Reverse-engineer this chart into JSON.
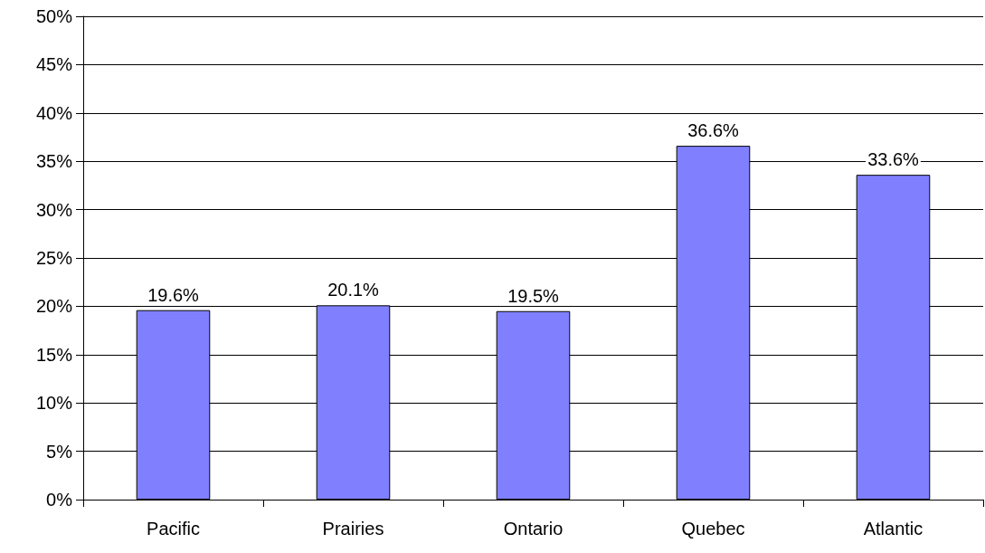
{
  "chart_data": {
    "type": "bar",
    "categories": [
      "Pacific",
      "Prairies",
      "Ontario",
      "Quebec",
      "Atlantic"
    ],
    "values": [
      19.6,
      20.1,
      19.5,
      36.6,
      33.6
    ],
    "value_labels": [
      "19.6%",
      "20.1%",
      "19.5%",
      "36.6%",
      "33.6%"
    ],
    "color": "#8080ff",
    "ylim": [
      0,
      50
    ],
    "yticks": [
      {
        "value": 0,
        "label": "0%"
      },
      {
        "value": 5,
        "label": "5%"
      },
      {
        "value": 10,
        "label": "10%"
      },
      {
        "value": 15,
        "label": "15%"
      },
      {
        "value": 20,
        "label": "20%"
      },
      {
        "value": 25,
        "label": "25%"
      },
      {
        "value": 30,
        "label": "30%"
      },
      {
        "value": 35,
        "label": "35%"
      },
      {
        "value": 40,
        "label": "40%"
      },
      {
        "value": 45,
        "label": "45%"
      },
      {
        "value": 50,
        "label": "50%"
      }
    ],
    "grid": "y"
  }
}
